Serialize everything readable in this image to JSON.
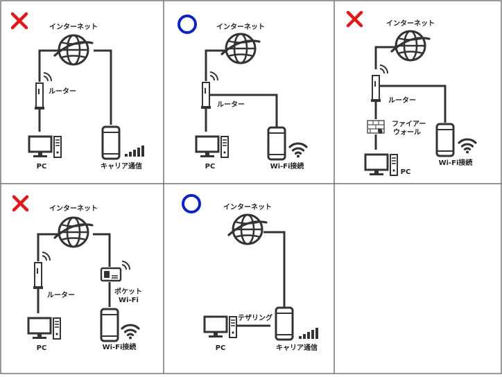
{
  "colors": {
    "cross": "#e01818",
    "circle": "#0a22c8",
    "line": "#333333",
    "icon": "#333333",
    "grid": "#555555"
  },
  "panels": [
    {
      "mark": "cross",
      "labels": {
        "internet": "インターネット",
        "router": "ルーター",
        "pc": "PC",
        "phone": "キャリア通信"
      },
      "phone_signal": "cellular-bars"
    },
    {
      "mark": "circle",
      "labels": {
        "internet": "インターネット",
        "router": "ルーター",
        "pc": "PC",
        "phone": "Wi-Fi接続"
      },
      "phone_signal": "wifi"
    },
    {
      "mark": "cross",
      "labels": {
        "internet": "インターネット",
        "router": "ルーター",
        "firewall_line1": "ファイアー",
        "firewall_line2": "ウォール",
        "pc": "PC",
        "phone": "Wi-Fi接続"
      },
      "phone_signal": "wifi"
    },
    {
      "mark": "cross",
      "labels": {
        "internet": "インターネット",
        "router": "ルーター",
        "pocket_line1": "ポケット",
        "pocket_line2": "Wi-Fi",
        "pc": "PC",
        "phone": "Wi-Fi接続"
      },
      "phone_signal": "wifi"
    },
    {
      "mark": "circle",
      "labels": {
        "internet": "インターネット",
        "tethering": "テザリング",
        "pc": "PC",
        "phone": "キャリア通信"
      },
      "phone_signal": "cellular-bars"
    }
  ]
}
